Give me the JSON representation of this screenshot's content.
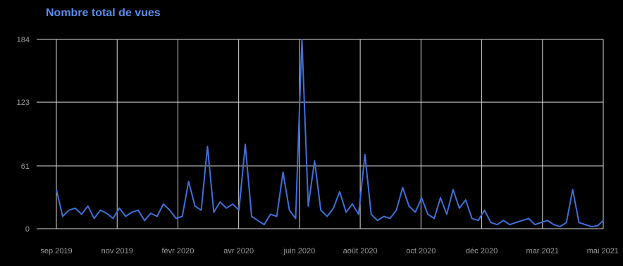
{
  "chart_data": {
    "type": "line",
    "title": "Nombre total de vues",
    "xlabel": "",
    "ylabel": "",
    "y_ticks": [
      "0",
      "61",
      "123",
      "184"
    ],
    "ylim": [
      0,
      184
    ],
    "x_ticks": [
      "sep 2019",
      "nov 2019",
      "févr 2020",
      "avr 2020",
      "juin 2020",
      "août 2020",
      "oct 2020",
      "déc 2020",
      "mar 2021",
      "mai 2021"
    ],
    "xlim": [
      "2019-09-01",
      "2021-05-01"
    ],
    "grid": true,
    "colors": {
      "line": "#3f6fd8",
      "title": "#5b8def",
      "grid": "#d9d9d9",
      "axis_labels": "#9a9a9a"
    },
    "series": [
      {
        "x": [
          "2019-09-01",
          "2019-09-08",
          "2019-09-15",
          "2019-09-22",
          "2019-09-29",
          "2019-10-06",
          "2019-10-13",
          "2019-10-20",
          "2019-10-27",
          "2019-11-03",
          "2019-11-10",
          "2019-11-17",
          "2019-11-24",
          "2019-12-01",
          "2019-12-08",
          "2019-12-15",
          "2019-12-22",
          "2019-12-29",
          "2020-01-05",
          "2020-01-12",
          "2020-01-19",
          "2020-01-26",
          "2020-02-02",
          "2020-02-09",
          "2020-02-16",
          "2020-02-23",
          "2020-03-01",
          "2020-03-08",
          "2020-03-15",
          "2020-03-22",
          "2020-03-29",
          "2020-04-05",
          "2020-04-12",
          "2020-04-19",
          "2020-04-26",
          "2020-05-03",
          "2020-05-10",
          "2020-05-17",
          "2020-05-24",
          "2020-05-31",
          "2020-06-07",
          "2020-06-14",
          "2020-06-21",
          "2020-06-28",
          "2020-07-05",
          "2020-07-12",
          "2020-07-19",
          "2020-07-26",
          "2020-08-02",
          "2020-08-09",
          "2020-08-16",
          "2020-08-23",
          "2020-08-30",
          "2020-09-06",
          "2020-09-13",
          "2020-09-20",
          "2020-09-27",
          "2020-10-04",
          "2020-10-11",
          "2020-10-18",
          "2020-10-25",
          "2020-11-01",
          "2020-11-08",
          "2020-11-15",
          "2020-11-22",
          "2020-11-29",
          "2020-12-06",
          "2020-12-13",
          "2020-12-20",
          "2020-12-27",
          "2021-01-03",
          "2021-01-10",
          "2021-01-17",
          "2021-01-24",
          "2021-01-31",
          "2021-02-07",
          "2021-02-14",
          "2021-02-21",
          "2021-02-28",
          "2021-03-07",
          "2021-03-14",
          "2021-03-21",
          "2021-03-28",
          "2021-04-04",
          "2021-04-11",
          "2021-04-18",
          "2021-04-25",
          "2021-05-01"
        ],
        "values": [
          38,
          12,
          18,
          20,
          14,
          22,
          10,
          18,
          15,
          10,
          20,
          12,
          16,
          18,
          8,
          15,
          12,
          24,
          18,
          10,
          12,
          46,
          22,
          18,
          80,
          16,
          26,
          20,
          24,
          18,
          82,
          12,
          8,
          4,
          14,
          12,
          55,
          18,
          10,
          184,
          22,
          66,
          18,
          12,
          20,
          36,
          16,
          24,
          14,
          72,
          14,
          8,
          12,
          10,
          18,
          40,
          22,
          16,
          30,
          14,
          10,
          30,
          14,
          38,
          20,
          28,
          10,
          8,
          18,
          6,
          4,
          8,
          4,
          6,
          8,
          10,
          4,
          6,
          8,
          4,
          2,
          6,
          38,
          6,
          4,
          2,
          3,
          8
        ]
      }
    ]
  }
}
